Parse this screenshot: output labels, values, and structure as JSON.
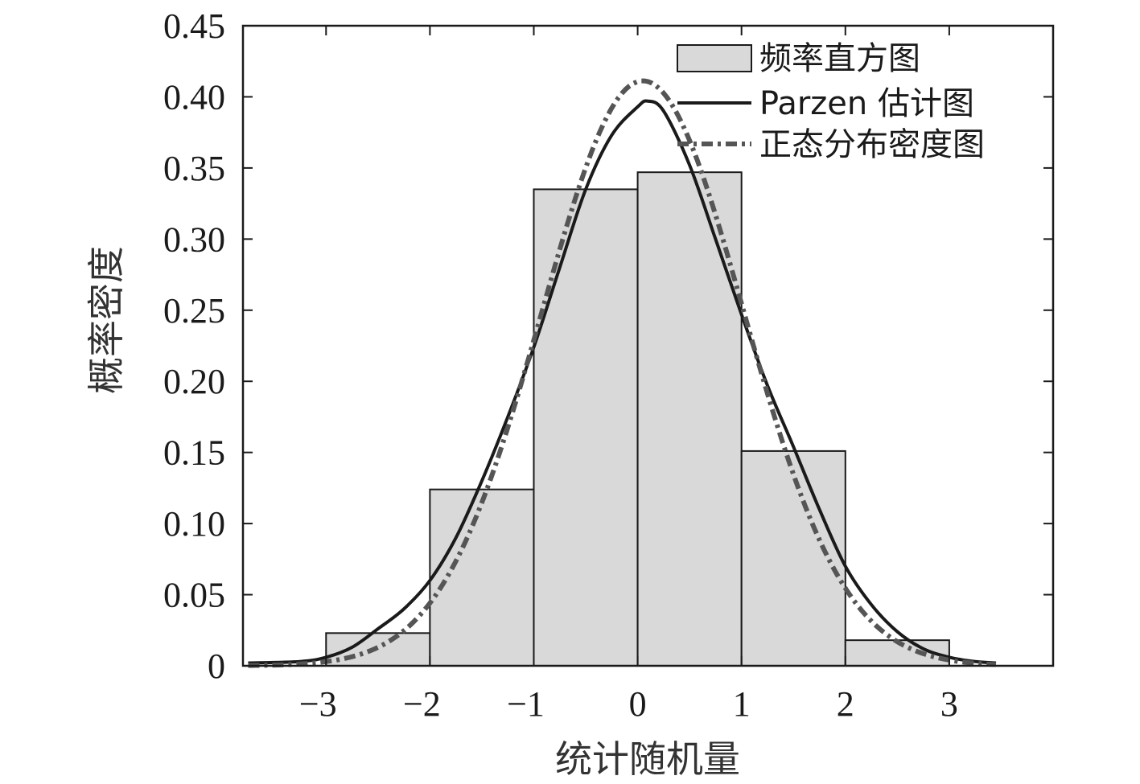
{
  "chart_data": {
    "type": "bar",
    "title": "",
    "xlabel": "统计随机量",
    "ylabel": "概率密度",
    "xlim": [
      -3.8,
      4.0
    ],
    "ylim": [
      0,
      0.45
    ],
    "xticks": [
      -3,
      -2,
      -1,
      0,
      1,
      2,
      3
    ],
    "xtick_labels": [
      "−3",
      "−2",
      "−1",
      "0",
      "1",
      "2",
      "3"
    ],
    "yticks": [
      0,
      0.05,
      0.1,
      0.15,
      0.2,
      0.25,
      0.3,
      0.35,
      0.4,
      0.45
    ],
    "ytick_labels": [
      "0",
      "0.05",
      "0.10",
      "0.15",
      "0.20",
      "0.25",
      "0.30",
      "0.35",
      "0.40",
      "0.45"
    ],
    "legend_position": "top-right",
    "histogram": {
      "name": "频率直方图",
      "bin_edges": [
        -3,
        -2,
        -1,
        0,
        1,
        2,
        3
      ],
      "values": [
        0.023,
        0.124,
        0.335,
        0.347,
        0.151,
        0.018
      ],
      "fill": "#d9d9d9",
      "edge": "#1a1a1a"
    },
    "series": [
      {
        "name": "Parzen 估计图",
        "style": "solid",
        "color": "#1a1a1a",
        "x": [
          -3.75,
          -3.25,
          -3.0,
          -2.75,
          -2.5,
          -2.25,
          -2.0,
          -1.75,
          -1.5,
          -1.25,
          -1.0,
          -0.75,
          -0.5,
          -0.25,
          0.0,
          0.1,
          0.25,
          0.5,
          0.75,
          1.0,
          1.25,
          1.5,
          1.75,
          2.0,
          2.25,
          2.5,
          2.75,
          3.0,
          3.25,
          3.45
        ],
        "y": [
          0.002,
          0.003,
          0.006,
          0.013,
          0.026,
          0.04,
          0.06,
          0.09,
          0.13,
          0.175,
          0.224,
          0.28,
          0.335,
          0.373,
          0.393,
          0.397,
          0.39,
          0.352,
          0.3,
          0.247,
          0.197,
          0.154,
          0.11,
          0.07,
          0.043,
          0.024,
          0.012,
          0.006,
          0.003,
          0.002
        ]
      },
      {
        "name": "正态分布密度图",
        "style": "dash-dot",
        "color": "#555555",
        "mean": 0.05,
        "sd": 0.97,
        "x_range": [
          -3.75,
          3.45
        ]
      }
    ]
  }
}
